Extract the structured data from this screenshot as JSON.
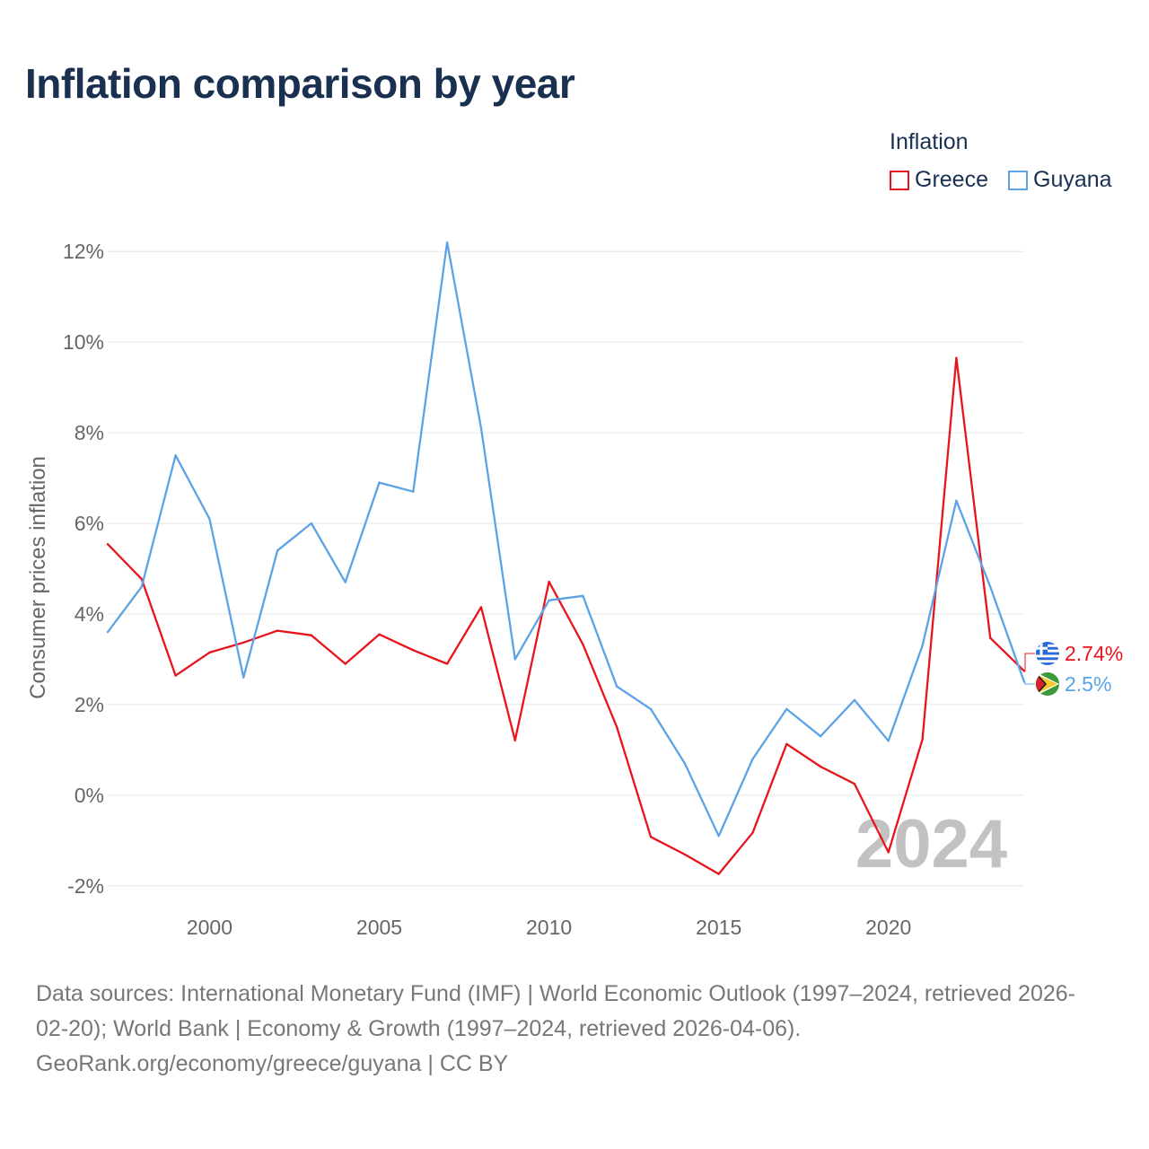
{
  "title": "Inflation comparison by year",
  "legend": {
    "title": "Inflation",
    "items": [
      {
        "label": "Greece",
        "color": "#e8141c"
      },
      {
        "label": "Guyana",
        "color": "#5ba3e6"
      }
    ]
  },
  "chart_data": {
    "type": "line",
    "title": "Inflation comparison by year",
    "xlabel": "",
    "ylabel": "Consumer prices inflation",
    "x": [
      1997,
      1998,
      1999,
      2000,
      2001,
      2002,
      2003,
      2004,
      2005,
      2006,
      2007,
      2008,
      2009,
      2010,
      2011,
      2012,
      2013,
      2014,
      2015,
      2016,
      2017,
      2018,
      2019,
      2020,
      2021,
      2022,
      2023,
      2024
    ],
    "xlim": [
      1997,
      2024
    ],
    "ylim": [
      -2.5,
      12.5
    ],
    "yticks": [
      -2,
      0,
      2,
      4,
      6,
      8,
      10,
      12
    ],
    "ytick_labels": [
      "-2%",
      "0%",
      "2%",
      "4%",
      "6%",
      "8%",
      "10%",
      "12%"
    ],
    "xticks": [
      2000,
      2005,
      2010,
      2015,
      2020
    ],
    "xtick_labels": [
      "2000",
      "2005",
      "2010",
      "2015",
      "2020"
    ],
    "grid": true,
    "series": [
      {
        "name": "Greece",
        "color": "#e8141c",
        "values": [
          5.54,
          4.77,
          2.64,
          3.15,
          3.37,
          3.63,
          3.53,
          2.9,
          3.55,
          3.2,
          2.9,
          4.15,
          1.21,
          4.71,
          3.33,
          1.5,
          -0.92,
          -1.31,
          -1.74,
          -0.83,
          1.13,
          0.63,
          0.25,
          -1.26,
          1.23,
          9.65,
          3.47,
          2.74
        ],
        "end_label": "2.74%"
      },
      {
        "name": "Guyana",
        "color": "#5ba3e6",
        "values": [
          3.6,
          4.6,
          7.5,
          6.1,
          2.6,
          5.4,
          6.0,
          4.7,
          6.9,
          6.7,
          12.2,
          8.1,
          3.0,
          4.3,
          4.4,
          2.4,
          1.9,
          0.7,
          -0.9,
          0.8,
          1.9,
          1.3,
          2.1,
          1.2,
          3.3,
          6.5,
          4.6,
          2.5
        ],
        "end_label": "2.5%"
      }
    ],
    "annotation": "2024"
  },
  "footer": {
    "line1": "Data sources: International Monetary Fund (IMF) | World Economic Outlook (1997–2024, retrieved 2026-",
    "line2": "02-20); World Bank | Economy & Growth (1997–2024, retrieved 2026-04-06).",
    "line3": "GeoRank.org/economy/greece/guyana | CC BY"
  }
}
